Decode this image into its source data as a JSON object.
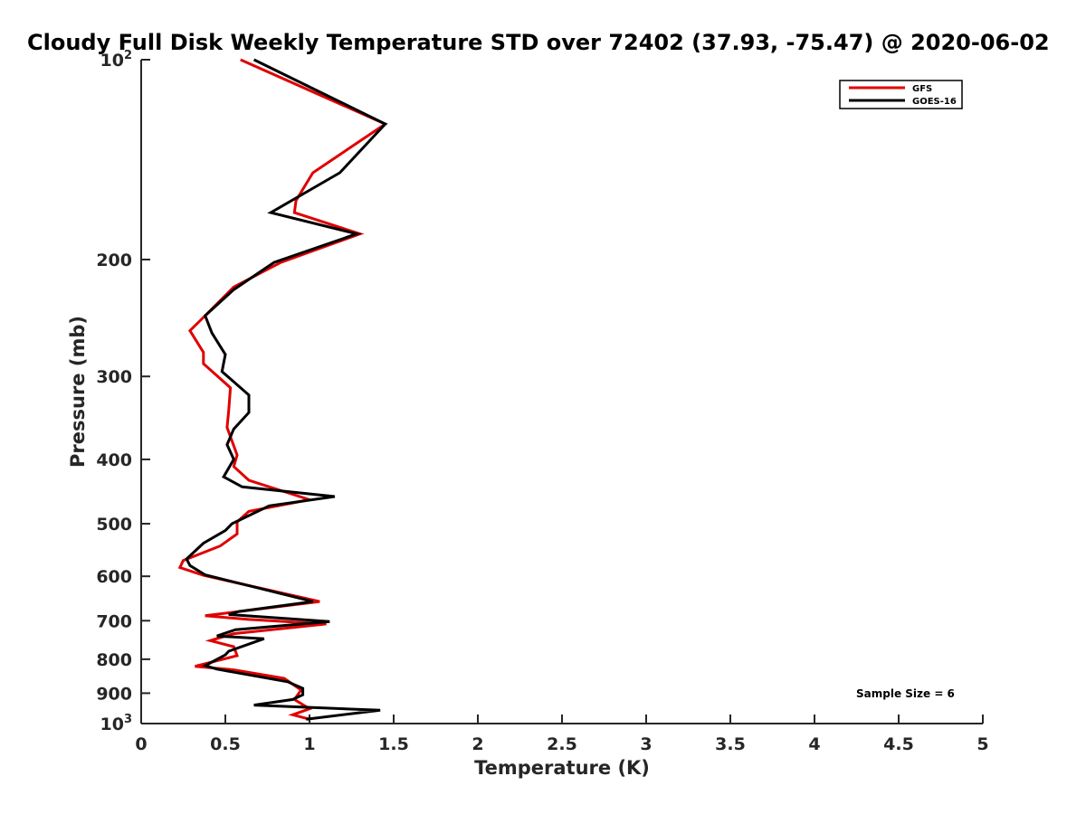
{
  "chart_data": {
    "type": "line",
    "title": "Cloudy Full Disk Weekly Temperature STD over 72402 (37.93, -75.47) @ 2020-06-02",
    "xlabel": "Temperature (K)",
    "ylabel": "Pressure (mb)",
    "xlim": [
      0,
      5
    ],
    "ylim": [
      100,
      1000
    ],
    "y_scale": "log",
    "y_reversed": true,
    "grid": false,
    "legend_position": "top-right",
    "x_ticks": [
      {
        "value": 0,
        "label": "0"
      },
      {
        "value": 0.5,
        "label": "0.5"
      },
      {
        "value": 1,
        "label": "1"
      },
      {
        "value": 1.5,
        "label": "1.5"
      },
      {
        "value": 2,
        "label": "2"
      },
      {
        "value": 2.5,
        "label": "2.5"
      },
      {
        "value": 3,
        "label": "3"
      },
      {
        "value": 3.5,
        "label": "3.5"
      },
      {
        "value": 4,
        "label": "4"
      },
      {
        "value": 4.5,
        "label": "4.5"
      },
      {
        "value": 5,
        "label": "5"
      }
    ],
    "y_ticks": [
      {
        "value": 100,
        "label": "10",
        "sup": "2"
      },
      {
        "value": 200,
        "label": "200",
        "sup": ""
      },
      {
        "value": 300,
        "label": "300",
        "sup": ""
      },
      {
        "value": 400,
        "label": "400",
        "sup": ""
      },
      {
        "value": 500,
        "label": "500",
        "sup": ""
      },
      {
        "value": 600,
        "label": "600",
        "sup": ""
      },
      {
        "value": 700,
        "label": "700",
        "sup": ""
      },
      {
        "value": 800,
        "label": "800",
        "sup": ""
      },
      {
        "value": 900,
        "label": "900",
        "sup": ""
      },
      {
        "value": 1000,
        "label": "10",
        "sup": "3"
      }
    ],
    "series": [
      {
        "name": "GFS",
        "color": "#e00000",
        "points": [
          [
            0.59,
            100
          ],
          [
            1.45,
            125
          ],
          [
            1.02,
            148
          ],
          [
            0.92,
            163
          ],
          [
            0.91,
            170
          ],
          [
            1.3,
            183
          ],
          [
            0.83,
            202
          ],
          [
            0.55,
            220
          ],
          [
            0.38,
            243
          ],
          [
            0.29,
            256
          ],
          [
            0.37,
            276
          ],
          [
            0.37,
            287
          ],
          [
            0.53,
            312
          ],
          [
            0.52,
            338
          ],
          [
            0.51,
            358
          ],
          [
            0.57,
            394
          ],
          [
            0.55,
            410
          ],
          [
            0.64,
            430
          ],
          [
            1.0,
            460
          ],
          [
            0.64,
            479
          ],
          [
            0.57,
            497
          ],
          [
            0.57,
            518
          ],
          [
            0.47,
            540
          ],
          [
            0.25,
            568
          ],
          [
            0.23,
            582
          ],
          [
            0.37,
            598
          ],
          [
            1.06,
            655
          ],
          [
            0.38,
            688
          ],
          [
            0.64,
            697
          ],
          [
            1.1,
            708
          ],
          [
            0.55,
            732
          ],
          [
            0.41,
            750
          ],
          [
            0.55,
            766
          ],
          [
            0.57,
            790
          ],
          [
            0.32,
            820
          ],
          [
            0.55,
            830
          ],
          [
            0.85,
            855
          ],
          [
            0.95,
            890
          ],
          [
            0.91,
            920
          ],
          [
            1.0,
            950
          ],
          [
            0.9,
            970
          ],
          [
            1.0,
            985
          ]
        ]
      },
      {
        "name": "GOES-16",
        "color": "#000000",
        "points": [
          [
            0.67,
            100
          ],
          [
            1.45,
            125
          ],
          [
            1.18,
            148
          ],
          [
            0.77,
            170
          ],
          [
            1.28,
            183
          ],
          [
            0.79,
            202
          ],
          [
            0.55,
            222
          ],
          [
            0.38,
            243
          ],
          [
            0.42,
            258
          ],
          [
            0.5,
            278
          ],
          [
            0.48,
            295
          ],
          [
            0.64,
            320
          ],
          [
            0.64,
            340
          ],
          [
            0.55,
            360
          ],
          [
            0.51,
            380
          ],
          [
            0.55,
            400
          ],
          [
            0.49,
            425
          ],
          [
            0.6,
            440
          ],
          [
            1.15,
            455
          ],
          [
            0.76,
            470
          ],
          [
            0.54,
            500
          ],
          [
            0.5,
            512
          ],
          [
            0.37,
            535
          ],
          [
            0.27,
            565
          ],
          [
            0.29,
            578
          ],
          [
            0.38,
            597
          ],
          [
            1.02,
            655
          ],
          [
            0.58,
            678
          ],
          [
            0.52,
            685
          ],
          [
            1.12,
            702
          ],
          [
            0.56,
            722
          ],
          [
            0.45,
            738
          ],
          [
            0.73,
            745
          ],
          [
            0.52,
            778
          ],
          [
            0.5,
            788
          ],
          [
            0.38,
            818
          ],
          [
            0.45,
            828
          ],
          [
            0.87,
            865
          ],
          [
            0.96,
            885
          ],
          [
            0.96,
            905
          ],
          [
            0.9,
            920
          ],
          [
            0.67,
            938
          ],
          [
            1.42,
            955
          ],
          [
            0.98,
            985
          ]
        ]
      }
    ],
    "annotation": "Sample Size = 6"
  }
}
